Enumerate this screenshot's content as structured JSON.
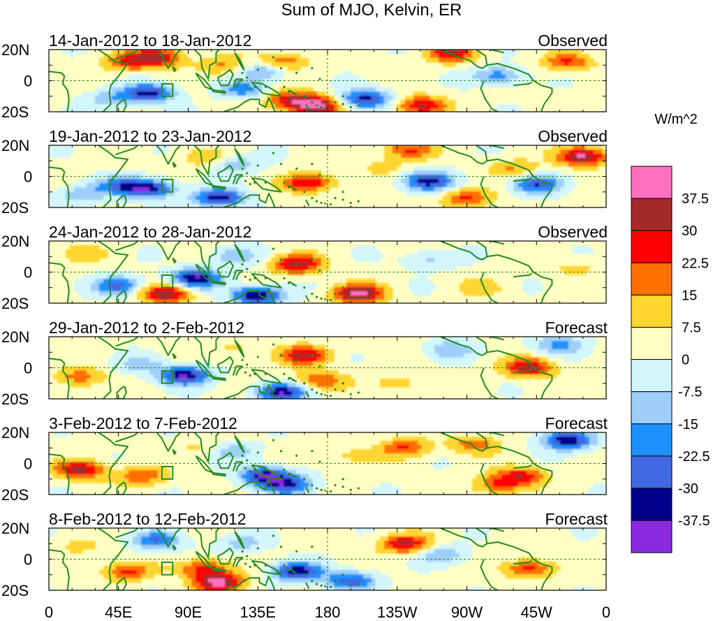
{
  "title": "Sum of MJO, Kelvin, ER",
  "colorbar": {
    "unit": "W/m^2",
    "levels": [
      -37.5,
      -30,
      -22.5,
      -15,
      -7.5,
      0,
      7.5,
      15,
      22.5,
      30,
      37.5
    ],
    "level_labels": [
      "37.5",
      "30",
      "22.5",
      "15",
      "7.5",
      "0",
      "-7.5",
      "-15",
      "-22.5",
      "-30",
      "-37.5"
    ],
    "colors": [
      "#ff6fc0",
      "#a52a2a",
      "#ff0000",
      "#ff7000",
      "#ffd530",
      "#ffffc4",
      "#d3f6fb",
      "#9ecffb",
      "#1e90ff",
      "#4169e1",
      "#00008b",
      "#8a2be2"
    ]
  },
  "axes": {
    "lat_labels": [
      "20N",
      "0",
      "20S"
    ],
    "lon_labels": [
      "0",
      "45E",
      "90E",
      "135E",
      "180",
      "135W",
      "90W",
      "45W",
      "0"
    ],
    "lat_range": [
      -20,
      20
    ],
    "lon_range": [
      0,
      360
    ]
  },
  "map_colors": {
    "coast": "#228b22",
    "grid": "#228b22"
  },
  "panels": [
    {
      "date_range": "14-Jan-2012 to 18-Jan-2012",
      "status": "Observed",
      "anomalies": [
        {
          "lon": 50,
          "lat": 12,
          "val": 20
        },
        {
          "lon": 70,
          "lat": 15,
          "val": 32
        },
        {
          "lon": 65,
          "lat": -8,
          "val": -35
        },
        {
          "lon": 40,
          "lat": -12,
          "val": -15
        },
        {
          "lon": 112,
          "lat": 10,
          "val": 14
        },
        {
          "lon": 140,
          "lat": 7,
          "val": -20
        },
        {
          "lon": 150,
          "lat": 12,
          "val": 22
        },
        {
          "lon": 155,
          "lat": -12,
          "val": 24
        },
        {
          "lon": 172,
          "lat": -16,
          "val": 40
        },
        {
          "lon": 205,
          "lat": -12,
          "val": -36
        },
        {
          "lon": 240,
          "lat": -16,
          "val": 30
        },
        {
          "lon": 260,
          "lat": 18,
          "val": 28
        },
        {
          "lon": 290,
          "lat": 3,
          "val": -22
        },
        {
          "lon": 335,
          "lat": 12,
          "val": 22
        },
        {
          "lon": 125,
          "lat": -6,
          "val": -20
        }
      ]
    },
    {
      "date_range": "19-Jan-2012 to 23-Jan-2012",
      "status": "Observed",
      "anomalies": [
        {
          "lon": 65,
          "lat": -8,
          "val": -38
        },
        {
          "lon": 45,
          "lat": -6,
          "val": -22
        },
        {
          "lon": 110,
          "lat": -14,
          "val": -38
        },
        {
          "lon": 120,
          "lat": 8,
          "val": -15
        },
        {
          "lon": 168,
          "lat": -4,
          "val": 30
        },
        {
          "lon": 100,
          "lat": 12,
          "val": 12
        },
        {
          "lon": 232,
          "lat": 17,
          "val": 22
        },
        {
          "lon": 245,
          "lat": -3,
          "val": -36
        },
        {
          "lon": 270,
          "lat": -14,
          "val": 22
        },
        {
          "lon": 300,
          "lat": 5,
          "val": 14
        },
        {
          "lon": 315,
          "lat": -5,
          "val": -30
        },
        {
          "lon": 345,
          "lat": 13,
          "val": 38
        },
        {
          "lon": 20,
          "lat": -12,
          "val": -15
        },
        {
          "lon": 215,
          "lat": 6,
          "val": 8
        }
      ]
    },
    {
      "date_range": "24-Jan-2012 to 28-Jan-2012",
      "status": "Observed",
      "anomalies": [
        {
          "lon": 95,
          "lat": -4,
          "val": -40
        },
        {
          "lon": 135,
          "lat": -15,
          "val": -42
        },
        {
          "lon": 75,
          "lat": -14,
          "val": 35
        },
        {
          "lon": 45,
          "lat": -9,
          "val": -28
        },
        {
          "lon": 160,
          "lat": 5,
          "val": 33
        },
        {
          "lon": 200,
          "lat": -14,
          "val": 40
        },
        {
          "lon": 120,
          "lat": 10,
          "val": -15
        },
        {
          "lon": 245,
          "lat": 8,
          "val": -12
        },
        {
          "lon": 20,
          "lat": 12,
          "val": 10
        },
        {
          "lon": 280,
          "lat": -10,
          "val": 9
        },
        {
          "lon": 340,
          "lat": 3,
          "val": 8
        }
      ]
    },
    {
      "date_range": "29-Jan-2012 to 2-Feb-2012",
      "status": "Forecast",
      "anomalies": [
        {
          "lon": 88,
          "lat": -5,
          "val": -40
        },
        {
          "lon": 150,
          "lat": -16,
          "val": -38
        },
        {
          "lon": 165,
          "lat": 8,
          "val": 30
        },
        {
          "lon": 175,
          "lat": -8,
          "val": 20
        },
        {
          "lon": 20,
          "lat": -6,
          "val": 18
        },
        {
          "lon": 60,
          "lat": 2,
          "val": -12
        },
        {
          "lon": 310,
          "lat": 0,
          "val": 32
        },
        {
          "lon": 260,
          "lat": 12,
          "val": -15
        },
        {
          "lon": 330,
          "lat": 15,
          "val": -20
        },
        {
          "lon": 120,
          "lat": 12,
          "val": 8
        },
        {
          "lon": 225,
          "lat": -10,
          "val": 10
        }
      ]
    },
    {
      "date_range": "3-Feb-2012 to 7-Feb-2012",
      "status": "Forecast",
      "anomalies": [
        {
          "lon": 20,
          "lat": -4,
          "val": 32
        },
        {
          "lon": 60,
          "lat": -8,
          "val": 20
        },
        {
          "lon": 140,
          "lat": -8,
          "val": -38
        },
        {
          "lon": 155,
          "lat": -14,
          "val": -30
        },
        {
          "lon": 120,
          "lat": 8,
          "val": -15
        },
        {
          "lon": 230,
          "lat": 10,
          "val": 22
        },
        {
          "lon": 275,
          "lat": 12,
          "val": 18
        },
        {
          "lon": 290,
          "lat": -14,
          "val": 20
        },
        {
          "lon": 305,
          "lat": -8,
          "val": 25
        },
        {
          "lon": 335,
          "lat": 15,
          "val": -40
        },
        {
          "lon": 100,
          "lat": 10,
          "val": 8
        },
        {
          "lon": 195,
          "lat": 5,
          "val": 8
        }
      ]
    },
    {
      "date_range": "8-Feb-2012 to 12-Feb-2012",
      "status": "Forecast",
      "anomalies": [
        {
          "lon": 50,
          "lat": -8,
          "val": 22
        },
        {
          "lon": 100,
          "lat": -6,
          "val": 25
        },
        {
          "lon": 110,
          "lat": -15,
          "val": 38
        },
        {
          "lon": 70,
          "lat": 12,
          "val": -25
        },
        {
          "lon": 160,
          "lat": -8,
          "val": -38
        },
        {
          "lon": 195,
          "lat": -14,
          "val": -30
        },
        {
          "lon": 230,
          "lat": 10,
          "val": 30
        },
        {
          "lon": 310,
          "lat": -6,
          "val": 24
        },
        {
          "lon": 255,
          "lat": 3,
          "val": -15
        },
        {
          "lon": 125,
          "lat": 10,
          "val": -12
        },
        {
          "lon": 20,
          "lat": 8,
          "val": 8
        }
      ]
    }
  ]
}
